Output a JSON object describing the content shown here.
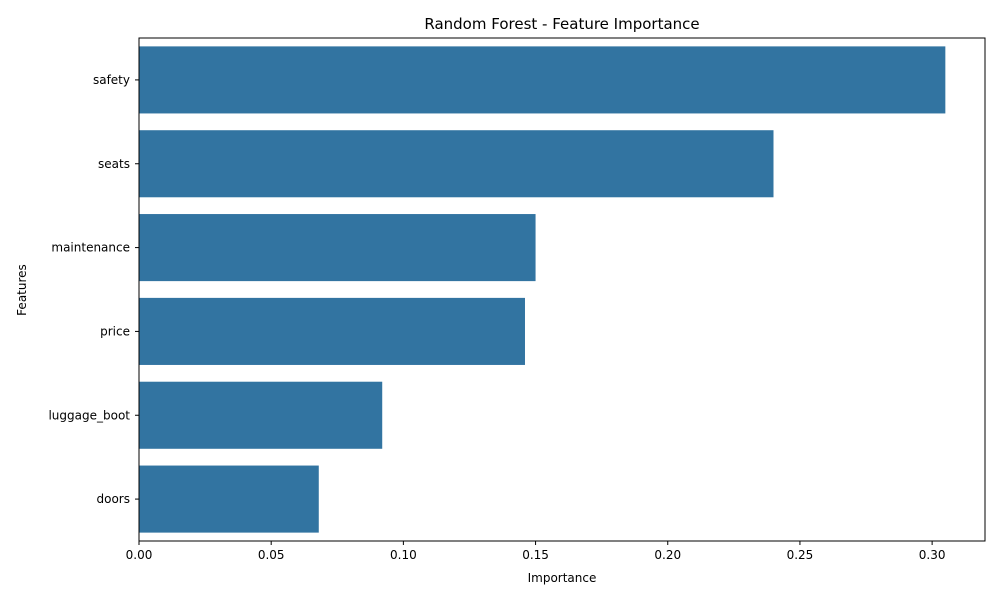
{
  "chart_data": {
    "type": "bar",
    "orientation": "horizontal",
    "title": "Random Forest - Feature Importance",
    "xlabel": "Importance",
    "ylabel": "Features",
    "categories": [
      "safety",
      "seats",
      "maintenance",
      "price",
      "luggage_boot",
      "doors"
    ],
    "values": [
      0.305,
      0.24,
      0.15,
      0.146,
      0.092,
      0.068
    ],
    "xlim": [
      0,
      0.32
    ],
    "xticks": [
      0.0,
      0.05,
      0.1,
      0.15,
      0.2,
      0.25,
      0.3
    ],
    "xtick_labels": [
      "0.00",
      "0.05",
      "0.10",
      "0.15",
      "0.20",
      "0.25",
      "0.30"
    ],
    "grid": false,
    "bar_color": "#3274a1"
  }
}
